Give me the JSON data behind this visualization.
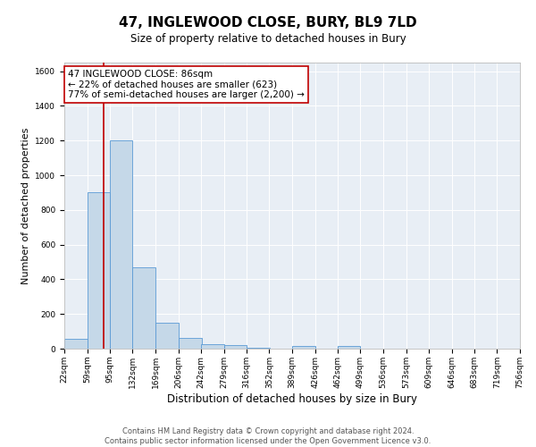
{
  "title": "47, INGLEWOOD CLOSE, BURY, BL9 7LD",
  "subtitle": "Size of property relative to detached houses in Bury",
  "xlabel": "Distribution of detached houses by size in Bury",
  "ylabel": "Number of detached properties",
  "bin_edges": [
    22,
    59,
    95,
    132,
    169,
    206,
    242,
    279,
    316,
    352,
    389,
    426,
    462,
    499,
    536,
    573,
    609,
    646,
    683,
    719,
    756
  ],
  "bin_labels": [
    "22sqm",
    "59sqm",
    "95sqm",
    "132sqm",
    "169sqm",
    "206sqm",
    "242sqm",
    "279sqm",
    "316sqm",
    "352sqm",
    "389sqm",
    "426sqm",
    "462sqm",
    "499sqm",
    "536sqm",
    "573sqm",
    "609sqm",
    "646sqm",
    "683sqm",
    "719sqm",
    "756sqm"
  ],
  "counts": [
    55,
    900,
    1200,
    470,
    150,
    60,
    28,
    20,
    5,
    0,
    18,
    0,
    18,
    0,
    0,
    0,
    0,
    0,
    0,
    0
  ],
  "bar_color": "#c5d8e8",
  "bar_edge_color": "#5b9bd5",
  "property_line_x": 86,
  "property_line_color": "#c00000",
  "annotation_line1": "47 INGLEWOOD CLOSE: 86sqm",
  "annotation_line2": "← 22% of detached houses are smaller (623)",
  "annotation_line3": "77% of semi-detached houses are larger (2,200) →",
  "annotation_box_color": "#ffffff",
  "annotation_box_edge": "#c00000",
  "ylim": [
    0,
    1650
  ],
  "yticks": [
    0,
    200,
    400,
    600,
    800,
    1000,
    1200,
    1400,
    1600
  ],
  "background_color": "#e8eef5",
  "footer_line1": "Contains HM Land Registry data © Crown copyright and database right 2024.",
  "footer_line2": "Contains public sector information licensed under the Open Government Licence v3.0.",
  "title_fontsize": 11,
  "subtitle_fontsize": 8.5,
  "xlabel_fontsize": 8.5,
  "ylabel_fontsize": 8,
  "tick_fontsize": 6.5,
  "annotation_fontsize": 7.5,
  "footer_fontsize": 6
}
